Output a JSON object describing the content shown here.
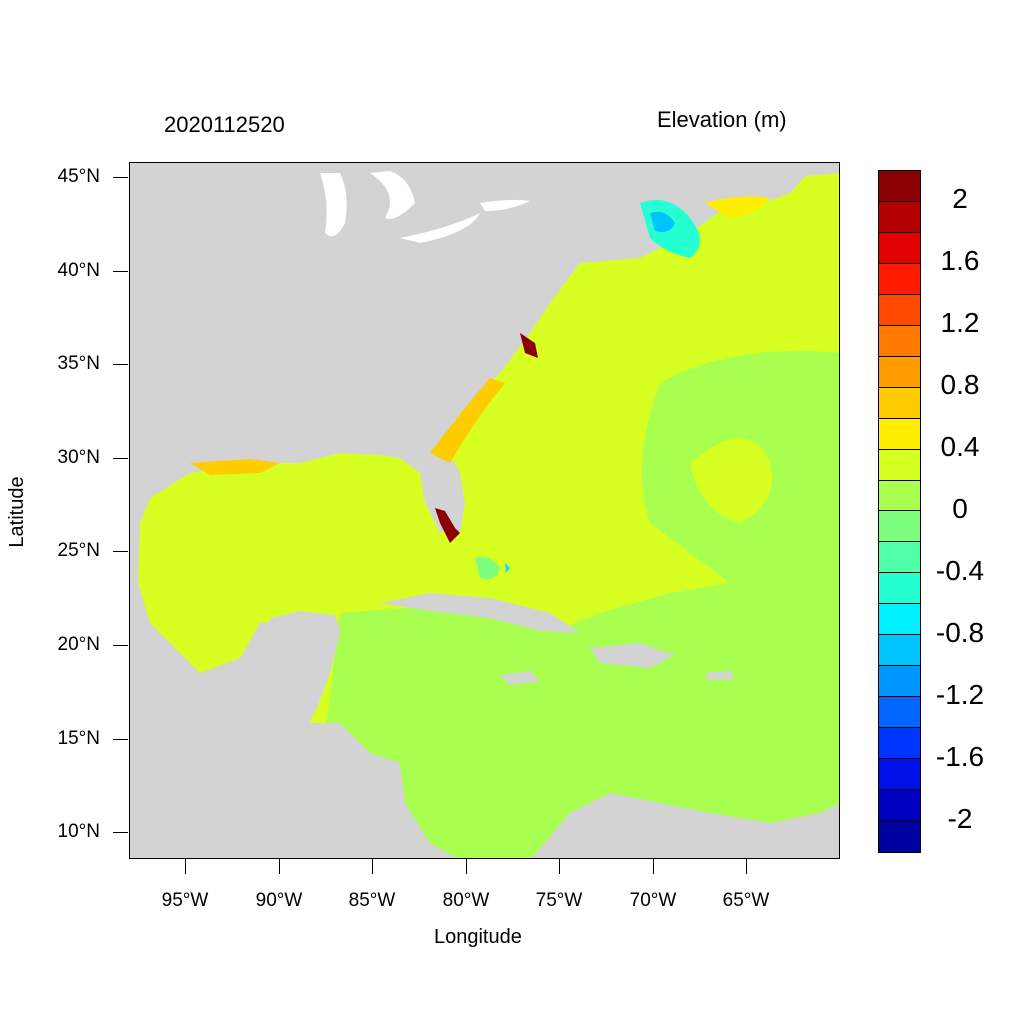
{
  "title_left": "2020112520",
  "title_right": "Elevation (m)",
  "x_axis": {
    "label": "Longitude",
    "ticks": [
      "95°W",
      "90°W",
      "85°W",
      "80°W",
      "75°W",
      "70°W",
      "65°W"
    ]
  },
  "y_axis": {
    "label": "Latitude",
    "ticks": [
      "45°N",
      "40°N",
      "35°N",
      "30°N",
      "25°N",
      "20°N",
      "15°N",
      "10°N"
    ]
  },
  "colorbar": {
    "labels": [
      "2",
      "1.6",
      "1.2",
      "0.8",
      "0.4",
      "0",
      "-0.4",
      "-0.8",
      "-1.2",
      "-1.6",
      "-2"
    ],
    "colors": [
      "#8b0000",
      "#b30000",
      "#e00000",
      "#ff1a00",
      "#ff4a00",
      "#ff7a00",
      "#ff9c00",
      "#ffcc00",
      "#ffee00",
      "#d6ff22",
      "#a8ff50",
      "#7dff7d",
      "#50ffa8",
      "#25ffd2",
      "#00f0ff",
      "#00c4ff",
      "#0096ff",
      "#0066ff",
      "#0035ff",
      "#0010e8",
      "#0000c0",
      "#0000a0"
    ]
  },
  "map_colors": {
    "land": "#d3d3d3",
    "lakes": "#ffffff",
    "background_sea": "#d7ff22",
    "caribbean_sea": "#a8ff50",
    "surge_high": "#8b0000",
    "surge_mid": "#ffcc00",
    "surge_low": "#00e0ff"
  }
}
